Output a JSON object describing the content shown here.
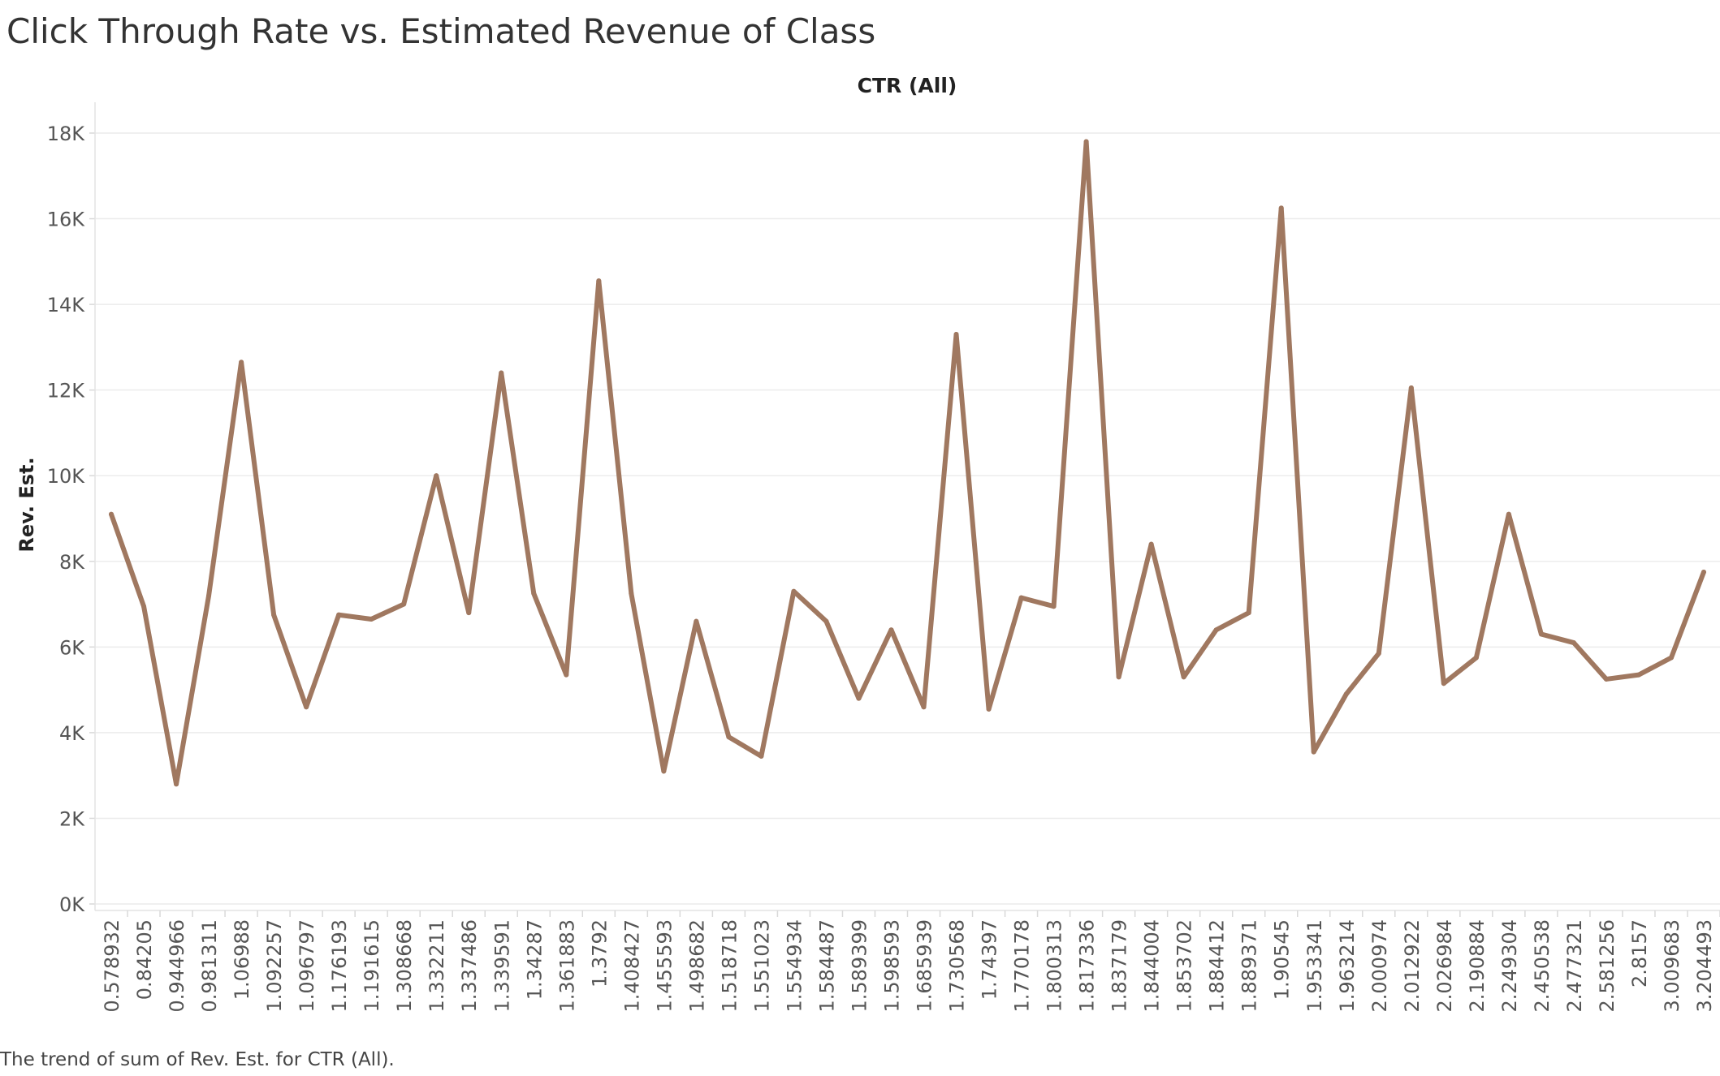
{
  "title": "Click Through Rate vs. Estimated Revenue of Class",
  "caption": "The trend of sum of Rev. Est. for CTR (All).",
  "chart_data": {
    "type": "line",
    "column_header": "CTR (All)",
    "ylabel": "Rev. Est.",
    "ylim": [
      0,
      18000
    ],
    "yticks": [
      0,
      2000,
      4000,
      6000,
      8000,
      10000,
      12000,
      14000,
      16000,
      18000
    ],
    "ytick_labels": [
      "0K",
      "2K",
      "4K",
      "6K",
      "8K",
      "10K",
      "12K",
      "14K",
      "16K",
      "18K"
    ],
    "grid": true,
    "line_color": "#a07860",
    "categories": [
      "0.578932",
      "0.84205",
      "0.944966",
      "0.981311",
      "1.06988",
      "1.092257",
      "1.096797",
      "1.176193",
      "1.191615",
      "1.308668",
      "1.332211",
      "1.337486",
      "1.339591",
      "1.34287",
      "1.361883",
      "1.3792",
      "1.408427",
      "1.455593",
      "1.498682",
      "1.518718",
      "1.551023",
      "1.554934",
      "1.584487",
      "1.589399",
      "1.598593",
      "1.685939",
      "1.730568",
      "1.74397",
      "1.770178",
      "1.800313",
      "1.817336",
      "1.837179",
      "1.844004",
      "1.853702",
      "1.884412",
      "1.889371",
      "1.90545",
      "1.953341",
      "1.963214",
      "2.000974",
      "2.012922",
      "2.026984",
      "2.190884",
      "2.249304",
      "2.450538",
      "2.477321",
      "2.581256",
      "2.8157",
      "3.009683",
      "3.204493"
    ],
    "series": [
      {
        "values": [
          9100,
          6950,
          2800,
          7200,
          12650,
          6750,
          4600,
          6750,
          6650,
          7000,
          10000,
          6800,
          12400,
          7250,
          5350,
          14550,
          7250,
          3100,
          6600,
          3900,
          3450,
          7300,
          6600,
          4800,
          6400,
          4600,
          13300,
          4550,
          7150,
          6950,
          17800,
          5300,
          8400,
          5300,
          6400,
          6800,
          16250,
          3550,
          4900,
          5850,
          12050,
          5150,
          5750,
          9100,
          6300,
          6100,
          5250,
          5350,
          5750,
          7750
        ]
      }
    ]
  }
}
